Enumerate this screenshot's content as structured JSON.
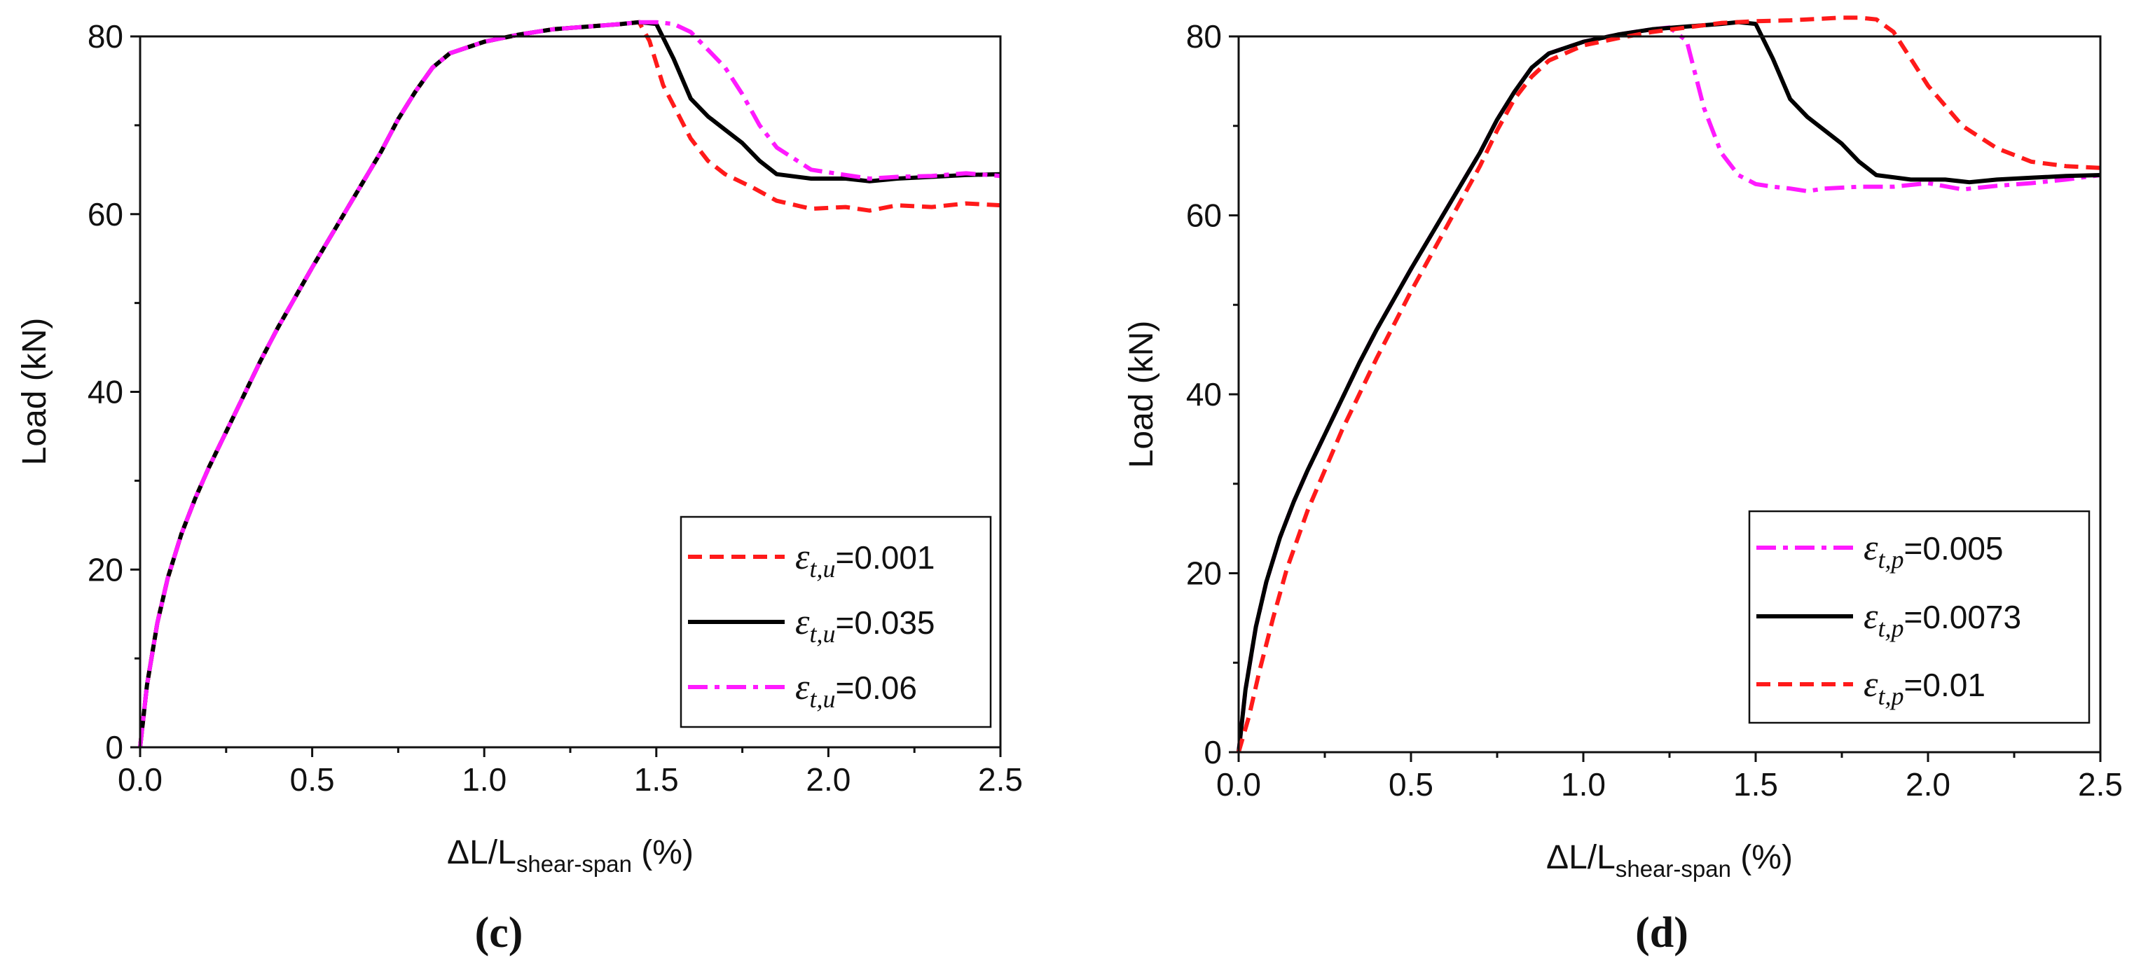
{
  "chart_data": [
    {
      "type": "line",
      "panel_label": "(c)",
      "xlabel_main": "ΔL/L",
      "xlabel_sub": "shear-span",
      "xlabel_unit": " (%)",
      "ylabel": "Load (kN)",
      "xlim": [
        0,
        2.5
      ],
      "ylim": [
        0,
        80
      ],
      "xticks": [
        0.0,
        0.5,
        1.0,
        1.5,
        2.0,
        2.5
      ],
      "xtick_labels": [
        "0.0",
        "0.5",
        "1.0",
        "1.5",
        "2.0",
        "2.5"
      ],
      "yticks": [
        0,
        20,
        40,
        60,
        80
      ],
      "ytick_labels": [
        "0",
        "20",
        "40",
        "60",
        "80"
      ],
      "grid": false,
      "legend_position": "bottom-right",
      "series": [
        {
          "name_symbol": "ε",
          "name_sub": "t,u",
          "name_value": "=0.001",
          "color": "#ff1a1a",
          "dash": "dashed",
          "x": [
            0,
            0.02,
            0.05,
            0.08,
            0.12,
            0.16,
            0.2,
            0.25,
            0.3,
            0.35,
            0.4,
            0.5,
            0.6,
            0.7,
            0.75,
            0.8,
            0.85,
            0.9,
            1.0,
            1.1,
            1.2,
            1.3,
            1.4,
            1.45,
            1.48,
            1.52,
            1.56,
            1.6,
            1.65,
            1.7,
            1.78,
            1.85,
            1.95,
            2.05,
            2.12,
            2.2,
            2.3,
            2.4,
            2.5
          ],
          "y": [
            0,
            7,
            14,
            19,
            24,
            28,
            31.5,
            35.5,
            39.5,
            43.5,
            47.2,
            54,
            60.5,
            67,
            70.7,
            73.8,
            76.5,
            78.1,
            79.4,
            80.2,
            80.8,
            81.1,
            81.4,
            81.6,
            79.5,
            74.5,
            71.5,
            68.5,
            66,
            64.5,
            63,
            61.5,
            60.6,
            60.8,
            60.4,
            61,
            60.8,
            61.2,
            61
          ]
        },
        {
          "name_symbol": "ε",
          "name_sub": "t,u",
          "name_value": "=0.035",
          "color": "#000000",
          "dash": "solid",
          "x": [
            0,
            0.02,
            0.05,
            0.08,
            0.12,
            0.16,
            0.2,
            0.25,
            0.3,
            0.35,
            0.4,
            0.5,
            0.6,
            0.7,
            0.75,
            0.8,
            0.85,
            0.9,
            1.0,
            1.1,
            1.2,
            1.3,
            1.4,
            1.45,
            1.5,
            1.55,
            1.6,
            1.65,
            1.7,
            1.75,
            1.8,
            1.85,
            1.95,
            2.05,
            2.12,
            2.2,
            2.3,
            2.4,
            2.5
          ],
          "y": [
            0,
            7,
            14,
            19,
            24,
            28,
            31.5,
            35.5,
            39.5,
            43.5,
            47.2,
            54,
            60.5,
            67,
            70.7,
            73.8,
            76.5,
            78.1,
            79.4,
            80.2,
            80.8,
            81.1,
            81.4,
            81.6,
            81.4,
            77.5,
            73,
            71,
            69.5,
            68,
            66,
            64.5,
            64,
            64,
            63.7,
            64,
            64.2,
            64.4,
            64.5
          ]
        },
        {
          "name_symbol": "ε",
          "name_sub": "t,u",
          "name_value": "=0.06",
          "color": "#ff1aff",
          "dash": "dashdot",
          "x": [
            0,
            0.02,
            0.05,
            0.08,
            0.12,
            0.16,
            0.2,
            0.25,
            0.3,
            0.35,
            0.4,
            0.5,
            0.6,
            0.7,
            0.75,
            0.8,
            0.85,
            0.9,
            1.0,
            1.1,
            1.2,
            1.3,
            1.4,
            1.45,
            1.5,
            1.55,
            1.6,
            1.65,
            1.7,
            1.75,
            1.8,
            1.85,
            1.95,
            2.05,
            2.12,
            2.2,
            2.3,
            2.4,
            2.5
          ],
          "y": [
            0,
            7,
            14,
            19,
            24,
            28,
            31.5,
            35.5,
            39.5,
            43.5,
            47.2,
            54,
            60.5,
            67,
            70.7,
            73.8,
            76.5,
            78.1,
            79.4,
            80.2,
            80.8,
            81.1,
            81.4,
            81.6,
            81.6,
            81.4,
            80.5,
            78.5,
            76.5,
            73.5,
            70,
            67.5,
            65,
            64.4,
            64,
            64.2,
            64.3,
            64.6,
            64.3
          ]
        }
      ]
    },
    {
      "type": "line",
      "panel_label": "(d)",
      "xlabel_main": "ΔL/L",
      "xlabel_sub": "shear-span",
      "xlabel_unit": " (%)",
      "ylabel": "Load (kN)",
      "xlim": [
        0,
        2.5
      ],
      "ylim": [
        0,
        80
      ],
      "xticks": [
        0.0,
        0.5,
        1.0,
        1.5,
        2.0,
        2.5
      ],
      "xtick_labels": [
        "0.0",
        "0.5",
        "1.0",
        "1.5",
        "2.0",
        "2.5"
      ],
      "yticks": [
        0,
        20,
        40,
        60,
        80
      ],
      "ytick_labels": [
        "0",
        "20",
        "40",
        "60",
        "80"
      ],
      "grid": false,
      "legend_position": "bottom-right",
      "series": [
        {
          "name_symbol": "ε",
          "name_sub": "t,p",
          "name_value": "=0.005",
          "color": "#ff1aff",
          "dash": "dashdot",
          "x": [
            0,
            0.02,
            0.05,
            0.08,
            0.12,
            0.16,
            0.2,
            0.25,
            0.3,
            0.35,
            0.4,
            0.5,
            0.6,
            0.7,
            0.75,
            0.8,
            0.85,
            0.9,
            1.0,
            1.1,
            1.2,
            1.25,
            1.3,
            1.35,
            1.4,
            1.45,
            1.5,
            1.55,
            1.6,
            1.65,
            1.7,
            1.8,
            1.9,
            2.0,
            2.1,
            2.2,
            2.3,
            2.4,
            2.5
          ],
          "y": [
            0,
            7,
            14,
            19,
            24,
            28,
            31.5,
            35.5,
            39.5,
            43.5,
            47.2,
            54,
            60.5,
            67,
            70.7,
            73.8,
            76.5,
            78.1,
            79.4,
            80.2,
            80.8,
            81,
            79.5,
            72,
            67,
            64.5,
            63.5,
            63.2,
            63,
            62.7,
            63,
            63.2,
            63.2,
            63.6,
            62.9,
            63.3,
            63.6,
            64,
            64.5
          ]
        },
        {
          "name_symbol": "ε",
          "name_sub": "t,p",
          "name_value": "=0.0073",
          "color": "#000000",
          "dash": "solid",
          "x": [
            0,
            0.02,
            0.05,
            0.08,
            0.12,
            0.16,
            0.2,
            0.25,
            0.3,
            0.35,
            0.4,
            0.5,
            0.6,
            0.7,
            0.75,
            0.8,
            0.85,
            0.9,
            1.0,
            1.1,
            1.2,
            1.3,
            1.4,
            1.45,
            1.5,
            1.55,
            1.6,
            1.65,
            1.7,
            1.75,
            1.8,
            1.85,
            1.95,
            2.05,
            2.12,
            2.2,
            2.3,
            2.4,
            2.5
          ],
          "y": [
            0,
            7,
            14,
            19,
            24,
            28,
            31.5,
            35.5,
            39.5,
            43.5,
            47.2,
            54,
            60.5,
            67,
            70.7,
            73.8,
            76.5,
            78.1,
            79.4,
            80.2,
            80.8,
            81.1,
            81.4,
            81.6,
            81.4,
            77.5,
            73,
            71,
            69.5,
            68,
            66,
            64.5,
            64,
            64,
            63.7,
            64,
            64.2,
            64.4,
            64.5
          ]
        },
        {
          "name_symbol": "ε",
          "name_sub": "t,p",
          "name_value": "=0.01",
          "color": "#ff1a1a",
          "dash": "dashed",
          "x": [
            0,
            0.03,
            0.06,
            0.1,
            0.14,
            0.2,
            0.25,
            0.3,
            0.35,
            0.4,
            0.5,
            0.6,
            0.7,
            0.75,
            0.8,
            0.85,
            0.9,
            1.0,
            1.1,
            1.2,
            1.3,
            1.4,
            1.5,
            1.6,
            1.7,
            1.75,
            1.8,
            1.85,
            1.9,
            1.95,
            2.0,
            2.1,
            2.2,
            2.3,
            2.4,
            2.5
          ],
          "y": [
            0,
            4,
            9,
            15,
            20.5,
            27,
            31.5,
            36,
            40,
            44,
            51.5,
            58.5,
            65.5,
            69.5,
            73,
            75.5,
            77.3,
            79,
            79.8,
            80.5,
            81,
            81.5,
            81.7,
            81.8,
            82,
            82.1,
            82.1,
            81.9,
            80.5,
            77.5,
            74.5,
            70,
            67.5,
            66,
            65.5,
            65.3
          ]
        }
      ]
    }
  ]
}
